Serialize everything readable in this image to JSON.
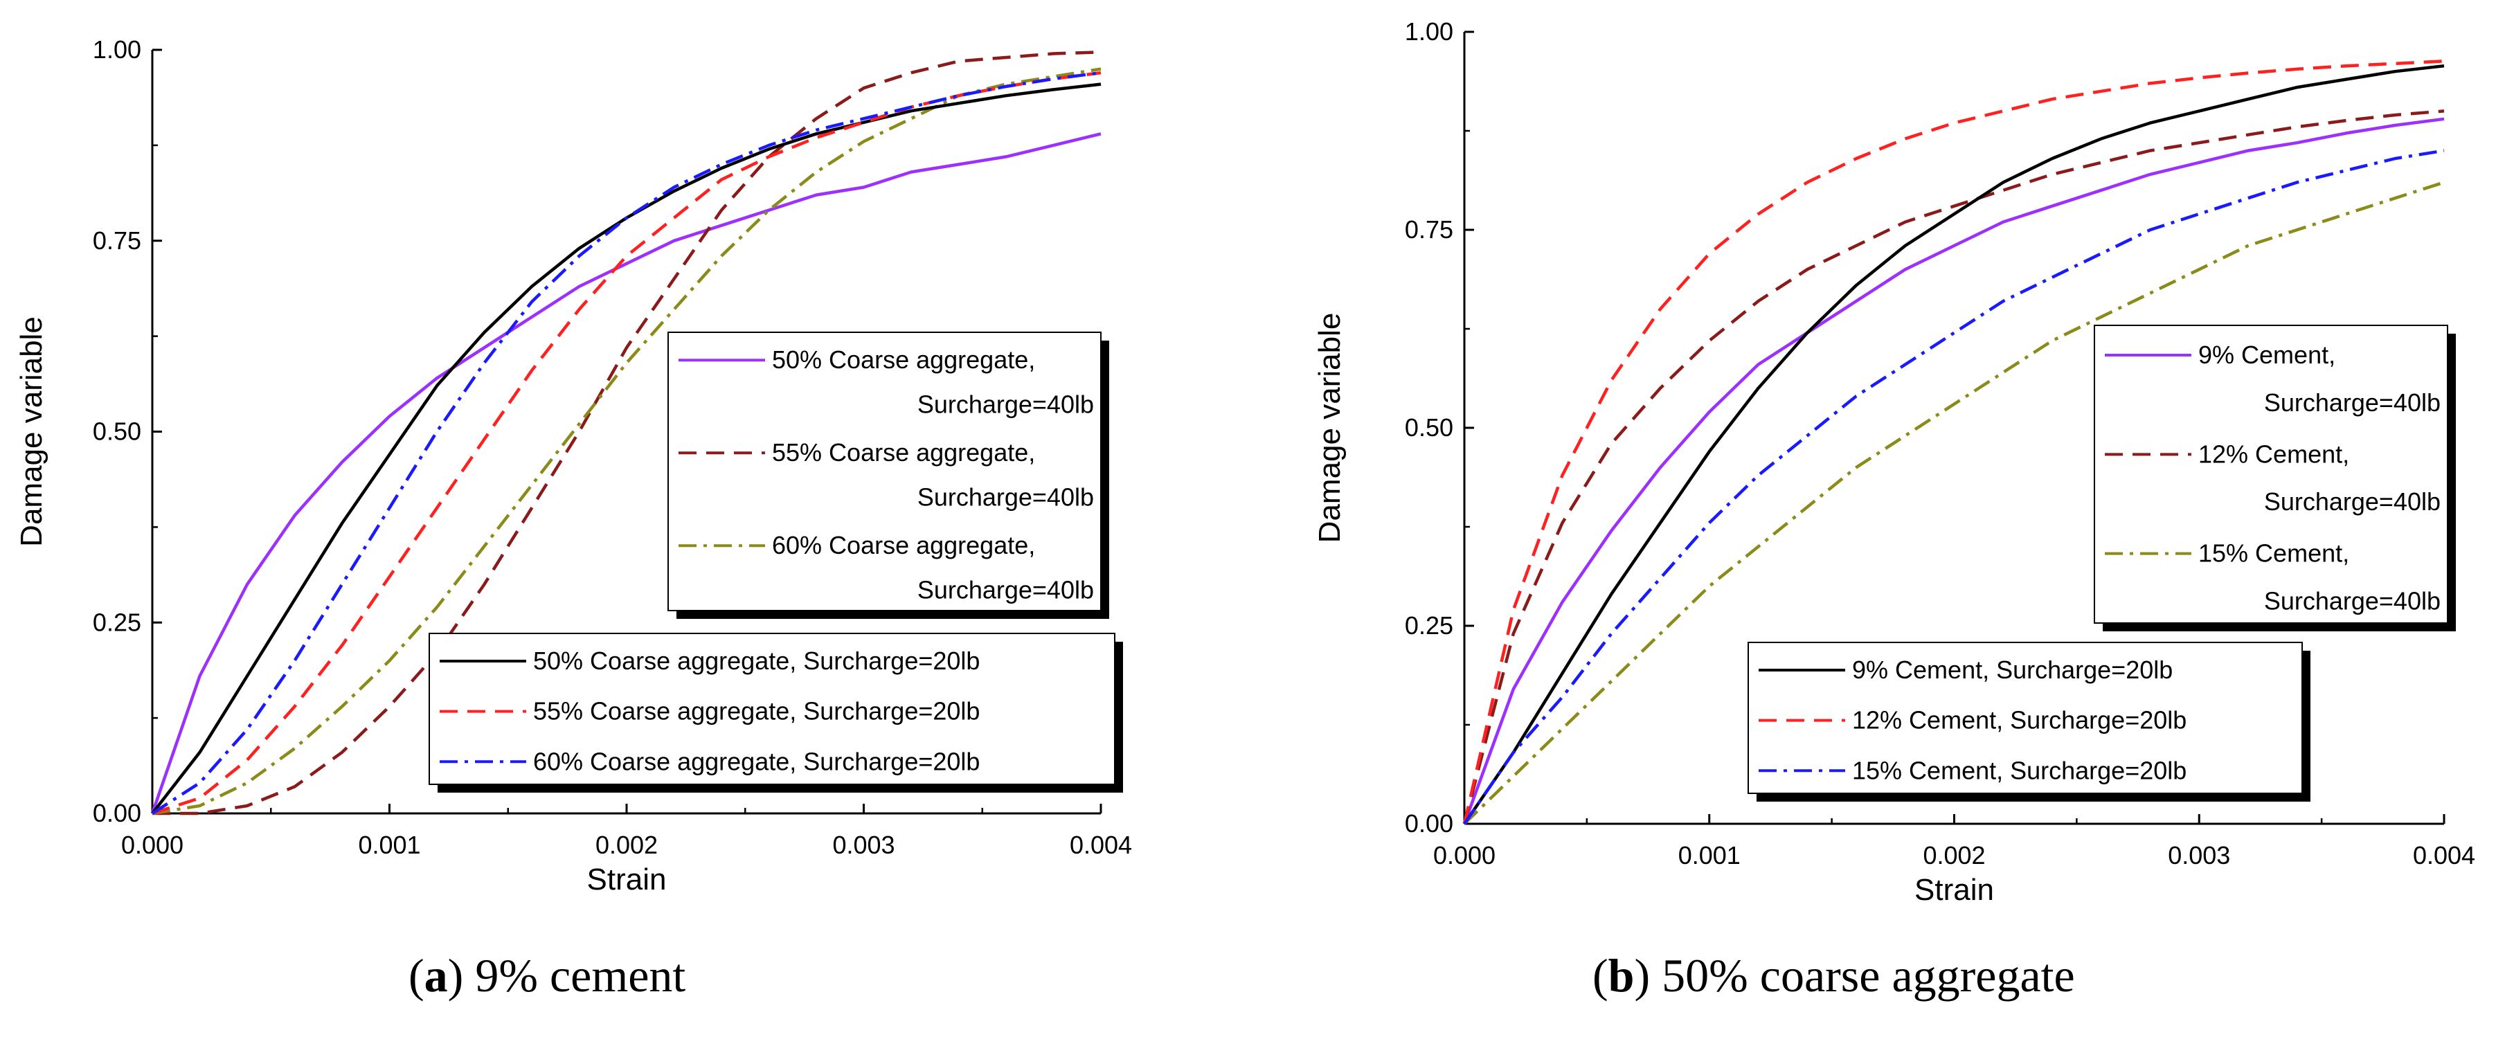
{
  "captions": [
    {
      "letter": "a",
      "paren_open": "(",
      "paren_close": ")",
      "text": " 9% cement"
    },
    {
      "letter": "b",
      "paren_open": "(",
      "paren_close": ")",
      "text": " 50% coarse aggregate"
    }
  ],
  "chart_data": [
    {
      "type": "line",
      "panel": "a",
      "xlabel": "Strain",
      "ylabel": "Damage variable",
      "xlim": [
        0,
        0.004
      ],
      "ylim": [
        0,
        1.0
      ],
      "x_ticks": [
        "0.000",
        "0.001",
        "0.002",
        "0.003",
        "0.004"
      ],
      "y_ticks": [
        "0.00",
        "0.25",
        "0.50",
        "0.75",
        "1.00"
      ],
      "x": [
        0,
        0.0002,
        0.0004,
        0.0006,
        0.0008,
        0.001,
        0.0012,
        0.0014,
        0.0016,
        0.0018,
        0.002,
        0.0022,
        0.0024,
        0.0026,
        0.0028,
        0.003,
        0.0032,
        0.0034,
        0.0036,
        0.0038,
        0.004
      ],
      "series": [
        {
          "name": "50% Coarse aggregate, Surcharge=40lb",
          "color": "#9b30ff",
          "style": "solid",
          "legend": 1,
          "values": [
            0,
            0.18,
            0.3,
            0.39,
            0.46,
            0.52,
            0.57,
            0.61,
            0.65,
            0.69,
            0.72,
            0.75,
            0.77,
            0.79,
            0.81,
            0.82,
            0.84,
            0.85,
            0.86,
            0.875,
            0.89
          ]
        },
        {
          "name": "55% Coarse aggregate, Surcharge=40lb",
          "color": "#8b1a1a",
          "style": "dash",
          "legend": 1,
          "values": [
            0,
            0,
            0.01,
            0.035,
            0.08,
            0.14,
            0.21,
            0.3,
            0.4,
            0.5,
            0.61,
            0.7,
            0.79,
            0.86,
            0.91,
            0.95,
            0.97,
            0.985,
            0.99,
            0.995,
            0.997
          ]
        },
        {
          "name": "60% Coarse aggregate, Surcharge=40lb",
          "color": "#8b8b1a",
          "style": "dashdot",
          "legend": 1,
          "values": [
            0,
            0.01,
            0.04,
            0.085,
            0.14,
            0.2,
            0.27,
            0.35,
            0.43,
            0.51,
            0.59,
            0.66,
            0.73,
            0.79,
            0.84,
            0.88,
            0.91,
            0.94,
            0.955,
            0.965,
            0.975
          ]
        },
        {
          "name": "50% Coarse aggregate, Surcharge=20lb",
          "color": "#000000",
          "style": "solid",
          "legend": 2,
          "values": [
            0,
            0.08,
            0.18,
            0.28,
            0.38,
            0.47,
            0.56,
            0.63,
            0.69,
            0.74,
            0.78,
            0.815,
            0.845,
            0.87,
            0.89,
            0.905,
            0.92,
            0.93,
            0.94,
            0.948,
            0.955
          ]
        },
        {
          "name": "55% Coarse aggregate, Surcharge=20lb",
          "color": "#ff2020",
          "style": "dash",
          "legend": 2,
          "values": [
            0,
            0.02,
            0.07,
            0.14,
            0.22,
            0.31,
            0.4,
            0.49,
            0.58,
            0.66,
            0.73,
            0.78,
            0.83,
            0.86,
            0.885,
            0.905,
            0.925,
            0.94,
            0.952,
            0.962,
            0.97
          ]
        },
        {
          "name": "60% Coarse aggregate, Surcharge=20lb",
          "color": "#1a1aff",
          "style": "dashdot",
          "legend": 2,
          "values": [
            0,
            0.04,
            0.11,
            0.2,
            0.3,
            0.4,
            0.5,
            0.59,
            0.67,
            0.73,
            0.78,
            0.82,
            0.85,
            0.875,
            0.895,
            0.91,
            0.925,
            0.94,
            0.952,
            0.962,
            0.97
          ]
        }
      ]
    },
    {
      "type": "line",
      "panel": "b",
      "xlabel": "Strain",
      "ylabel": "Damage variable",
      "xlim": [
        0,
        0.004
      ],
      "ylim": [
        0,
        1.0
      ],
      "x_ticks": [
        "0.000",
        "0.001",
        "0.002",
        "0.003",
        "0.004"
      ],
      "y_ticks": [
        "0.00",
        "0.25",
        "0.50",
        "0.75",
        "1.00"
      ],
      "x": [
        0,
        0.0002,
        0.0004,
        0.0006,
        0.0008,
        0.001,
        0.0012,
        0.0014,
        0.0016,
        0.0018,
        0.002,
        0.0022,
        0.0024,
        0.0026,
        0.0028,
        0.003,
        0.0032,
        0.0034,
        0.0036,
        0.0038,
        0.004
      ],
      "series": [
        {
          "name": "9% Cement, Surcharge=40lb",
          "color": "#9b30ff",
          "style": "solid",
          "legend": 1,
          "values": [
            0,
            0.17,
            0.28,
            0.37,
            0.45,
            0.52,
            0.58,
            0.62,
            0.66,
            0.7,
            0.73,
            0.76,
            0.78,
            0.8,
            0.82,
            0.835,
            0.85,
            0.86,
            0.872,
            0.882,
            0.89
          ]
        },
        {
          "name": "12% Cement, Surcharge=40lb",
          "color": "#8b1a1a",
          "style": "dash",
          "legend": 1,
          "values": [
            0,
            0.24,
            0.38,
            0.48,
            0.55,
            0.61,
            0.66,
            0.7,
            0.73,
            0.76,
            0.78,
            0.8,
            0.82,
            0.835,
            0.85,
            0.86,
            0.87,
            0.88,
            0.888,
            0.895,
            0.9
          ]
        },
        {
          "name": "15% Cement, Surcharge=40lb",
          "color": "#8b8b1a",
          "style": "dashdot",
          "legend": 1,
          "values": [
            0,
            0.06,
            0.12,
            0.18,
            0.24,
            0.3,
            0.35,
            0.4,
            0.45,
            0.49,
            0.53,
            0.57,
            0.61,
            0.64,
            0.67,
            0.7,
            0.73,
            0.75,
            0.77,
            0.79,
            0.81
          ]
        },
        {
          "name": "9% Cement, Surcharge=20lb",
          "color": "#000000",
          "style": "solid",
          "legend": 2,
          "values": [
            0,
            0.09,
            0.19,
            0.29,
            0.38,
            0.47,
            0.55,
            0.62,
            0.68,
            0.73,
            0.77,
            0.81,
            0.84,
            0.865,
            0.885,
            0.9,
            0.915,
            0.93,
            0.94,
            0.95,
            0.957
          ]
        },
        {
          "name": "12% Cement, Surcharge=20lb",
          "color": "#ff2020",
          "style": "dash",
          "legend": 2,
          "values": [
            0,
            0.27,
            0.44,
            0.56,
            0.65,
            0.72,
            0.77,
            0.81,
            0.84,
            0.865,
            0.885,
            0.9,
            0.915,
            0.925,
            0.935,
            0.942,
            0.948,
            0.953,
            0.957,
            0.96,
            0.963
          ]
        },
        {
          "name": "15% Cement, Surcharge=20lb",
          "color": "#1a1aff",
          "style": "dashdot",
          "legend": 2,
          "values": [
            0,
            0.09,
            0.16,
            0.24,
            0.31,
            0.38,
            0.44,
            0.49,
            0.54,
            0.58,
            0.62,
            0.66,
            0.69,
            0.72,
            0.75,
            0.77,
            0.79,
            0.81,
            0.825,
            0.84,
            0.85
          ]
        }
      ]
    }
  ]
}
